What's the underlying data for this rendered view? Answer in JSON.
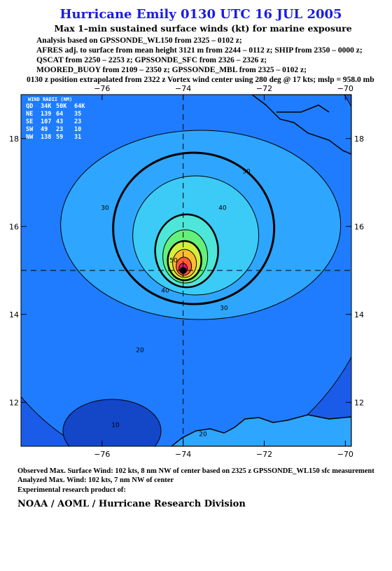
{
  "header": {
    "title": "Hurricane Emily 0130 UTC 16 JUL 2005",
    "subtitle": "Max 1–min sustained surface winds (kt) for marine exposure",
    "analysis_lines": [
      "Analysis based on  GPSSONDE_WL150 from 2325 – 0102 z;",
      "AFRES adj. to surface from mean height 3121 m from 2244 – 0112 z;  SHIP from 2350 – 0000 z;",
      "QSCAT from 2250 – 2253 z;  GPSSONDE_SFC from 2326 – 2326 z;",
      "MOORED_BUOY from 2109 – 2350 z;  GPSSONDE_MBL from 2325 – 0102 z;",
      "0130 z position extrapolated from 2322 z Vortex wind center using 280 deg @ 17 kts; mslp = 958.0 mb"
    ]
  },
  "chart_data": {
    "type": "contour",
    "xlim": [
      -78,
      -69.85
    ],
    "ylim": [
      11,
      19
    ],
    "xticks": [
      {
        "value": -76,
        "label": "−76"
      },
      {
        "value": -74,
        "label": "−74"
      },
      {
        "value": -72,
        "label": "−72"
      },
      {
        "value": -70,
        "label": "−70"
      }
    ],
    "yticks": [
      12,
      14,
      16,
      18
    ],
    "center_lon": -74,
    "center_lat": 15,
    "background_color": "#1a5ce8",
    "levels": [
      {
        "value": 10,
        "color": "#1446c8"
      },
      {
        "value": 20,
        "color": "#1f7cff"
      },
      {
        "value": 30,
        "color": "#2ea6ff"
      },
      {
        "value": 40,
        "color": "#3ccaf6"
      },
      {
        "value": 50,
        "color": "#4ee6d8"
      },
      {
        "value": 60,
        "color": "#64f07a"
      },
      {
        "value": 70,
        "color": "#d2f03c"
      },
      {
        "value": 80,
        "color": "#ffbe32"
      },
      {
        "value": 90,
        "color": "#ff5a32"
      },
      {
        "value": 100,
        "color": "#e6147a"
      }
    ],
    "wind_radii": {
      "title": "WIND RADII (NM)",
      "columns": [
        "QD",
        "34K",
        "50K",
        "64K"
      ],
      "rows": [
        [
          "NE",
          139,
          64,
          35
        ],
        [
          "SE",
          107,
          43,
          23
        ],
        [
          "SW",
          49,
          23,
          10
        ],
        [
          "NW",
          138,
          59,
          31
        ]
      ]
    }
  },
  "footer": {
    "lines": [
      "Observed Max. Surface Wind: 102 kts, 8 nm NW of center based on 2325 z GPSSONDE_WL150 sfc measurement",
      "Analyzed Max. Wind: 102 kts, 7 nm NW of center",
      "Experimental research product of:"
    ],
    "org": "NOAA / AOML / Hurricane Research Division"
  }
}
